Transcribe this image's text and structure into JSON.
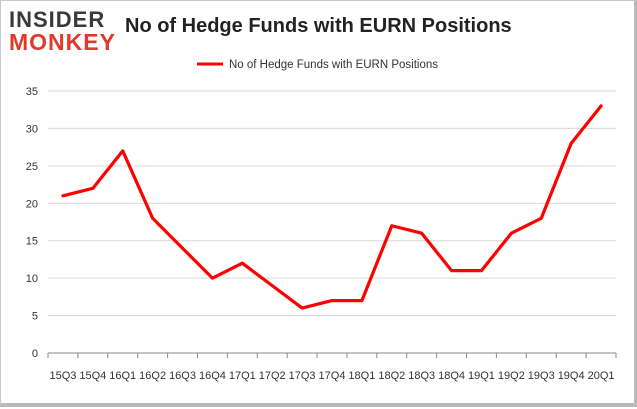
{
  "header": {
    "logo_top": "INSIDER",
    "logo_bottom": "MONKEY",
    "title": "No of Hedge Funds with EURN Positions"
  },
  "colors": {
    "series": "#ff0000",
    "logo_red": "#e03a2a",
    "logo_dark": "#3a3a3a"
  },
  "chart_data": {
    "type": "line",
    "title": "No of Hedge Funds with EURN Positions",
    "xlabel": "",
    "ylabel": "",
    "ylim": [
      0,
      35
    ],
    "yticks": [
      0,
      5,
      10,
      15,
      20,
      25,
      30,
      35
    ],
    "grid": "horizontal",
    "legend_position": "top-center",
    "categories": [
      "15Q3",
      "15Q4",
      "16Q1",
      "16Q2",
      "16Q3",
      "16Q4",
      "17Q1",
      "17Q2",
      "17Q3",
      "17Q4",
      "18Q1",
      "18Q2",
      "18Q3",
      "18Q4",
      "19Q1",
      "19Q2",
      "19Q3",
      "19Q4",
      "20Q1"
    ],
    "series": [
      {
        "name": "No of Hedge Funds with EURN Positions",
        "color": "#ff0000",
        "values": [
          21,
          22,
          27,
          18,
          14,
          10,
          12,
          9,
          6,
          7,
          7,
          17,
          16,
          11,
          11,
          16,
          18,
          28,
          33
        ]
      }
    ]
  }
}
